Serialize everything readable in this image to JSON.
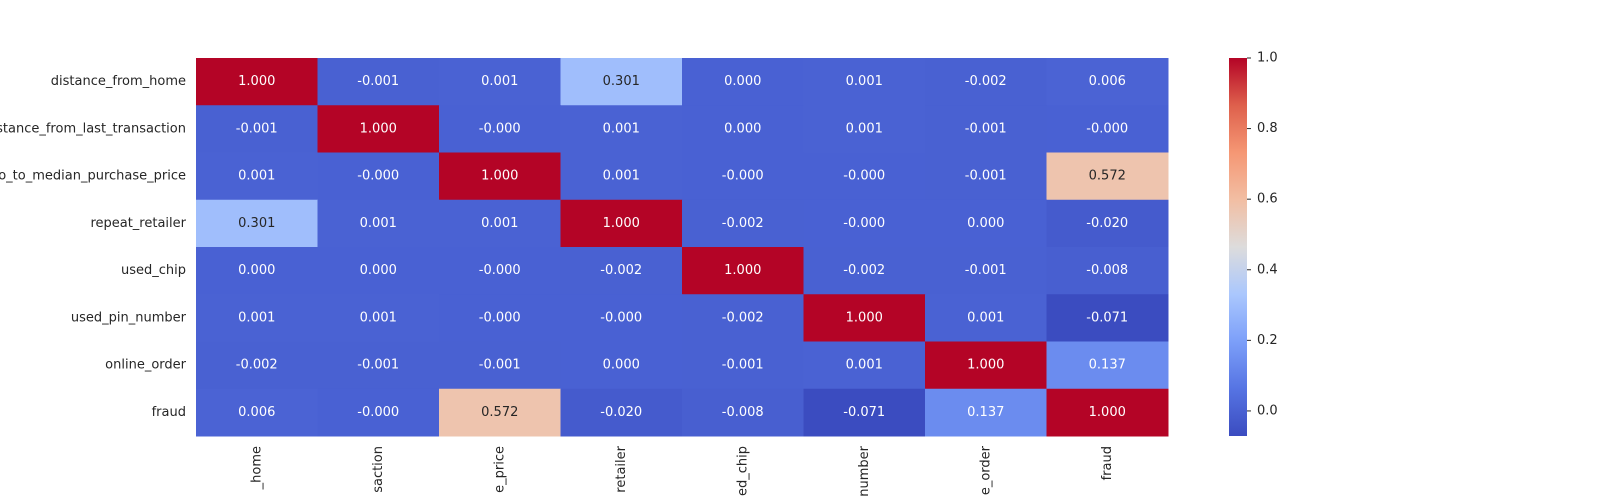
{
  "chart_data": {
    "type": "heatmap",
    "colormap": "coolwarm",
    "x_categories": [
      "_home",
      "saction",
      "e_price",
      "retailer",
      "ed_chip",
      "number",
      "e_order",
      "fraud"
    ],
    "y_categories": [
      "distance_from_home",
      "distance_from_last_transaction",
      "tio_to_median_purchase_price",
      "repeat_retailer",
      "used_chip",
      "used_pin_number",
      "online_order",
      "fraud"
    ],
    "values": [
      [
        1,
        -0.001,
        0.001,
        0.301,
        0,
        0.001,
        -0.002,
        0.006
      ],
      [
        -0.001,
        1,
        0,
        0.001,
        0,
        0.001,
        -0.001,
        0
      ],
      [
        0.001,
        0,
        1,
        0.001,
        0,
        0,
        -0.001,
        0.572
      ],
      [
        0.301,
        0.001,
        0.001,
        1,
        -0.002,
        0,
        0,
        -0.02
      ],
      [
        0,
        0,
        0,
        -0.002,
        1,
        -0.002,
        -0.001,
        -0.008
      ],
      [
        0.001,
        0.001,
        0,
        0,
        -0.002,
        1,
        0.001,
        -0.071
      ],
      [
        -0.002,
        -0.001,
        -0.001,
        0,
        -0.001,
        0.001,
        1,
        0.137
      ],
      [
        0.006,
        0,
        0.572,
        -0.02,
        -0.008,
        -0.071,
        0.137,
        1
      ]
    ],
    "value_labels": [
      [
        "1.000",
        "-0.001",
        "0.001",
        "0.301",
        "0.000",
        "0.001",
        "-0.002",
        "0.006"
      ],
      [
        "-0.001",
        "1.000",
        "-0.000",
        "0.001",
        "0.000",
        "0.001",
        "-0.001",
        "-0.000"
      ],
      [
        "0.001",
        "-0.000",
        "1.000",
        "0.001",
        "-0.000",
        "-0.000",
        "-0.001",
        "0.572"
      ],
      [
        "0.301",
        "0.001",
        "0.001",
        "1.000",
        "-0.002",
        "-0.000",
        "0.000",
        "-0.020"
      ],
      [
        "0.000",
        "0.000",
        "-0.000",
        "-0.002",
        "1.000",
        "-0.002",
        "-0.001",
        "-0.008"
      ],
      [
        "0.001",
        "0.001",
        "-0.000",
        "-0.000",
        "-0.002",
        "1.000",
        "0.001",
        "-0.071"
      ],
      [
        "-0.002",
        "-0.001",
        "-0.001",
        "0.000",
        "-0.001",
        "0.001",
        "1.000",
        "0.137"
      ],
      [
        "0.006",
        "-0.000",
        "0.572",
        "-0.020",
        "-0.008",
        "-0.071",
        "0.137",
        "1.000"
      ]
    ],
    "clim": [
      -0.071,
      1
    ],
    "cticks": [
      {
        "value": 0,
        "label": "0.0"
      },
      {
        "value": 0.2,
        "label": "0.2"
      },
      {
        "value": 0.4,
        "label": "0.4"
      },
      {
        "value": 0.6,
        "label": "0.6"
      },
      {
        "value": 0.8,
        "label": "0.8"
      },
      {
        "value": 1,
        "label": "1.0"
      }
    ]
  }
}
